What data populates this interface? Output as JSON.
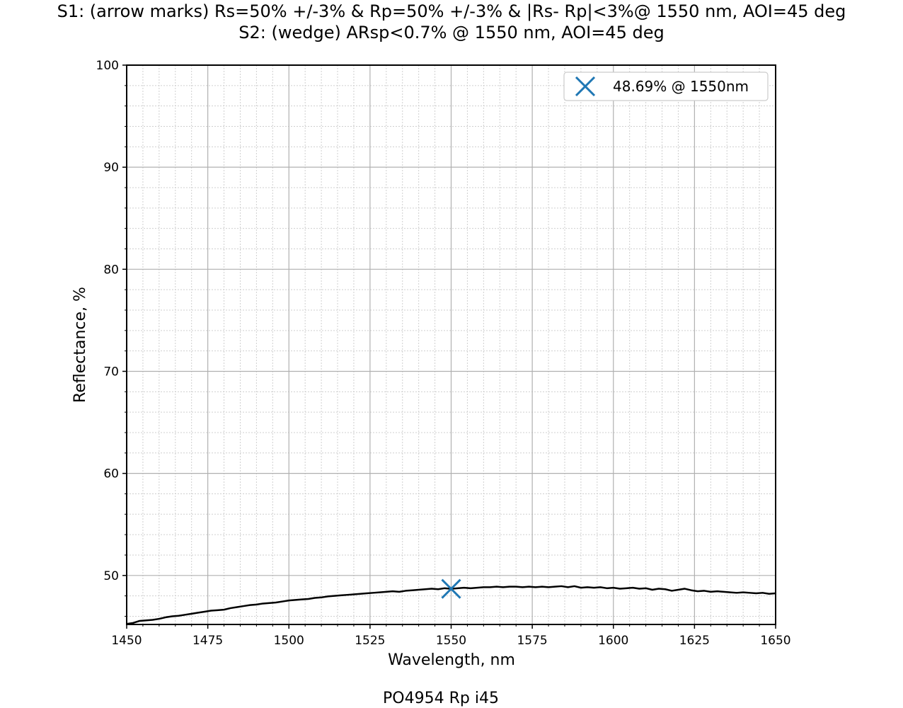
{
  "chart_data": {
    "type": "line",
    "title": "S1: (arrow marks) Rs=50% +/-3% & Rp=50% +/-3% & |Rs- Rp|<3%@ 1550 nm, AOI=45 deg\nS2: (wedge) ARsp<0.7% @ 1550 nm, AOI=45 deg",
    "title_lines": [
      "S1: (arrow marks) Rs=50% +/-3% & Rp=50% +/-3% & |Rs- Rp|<3%@ 1550 nm, AOI=45 deg",
      "S2: (wedge) ARsp<0.7% @ 1550 nm, AOI=45 deg"
    ],
    "xlabel": "Wavelength, nm",
    "ylabel": "Reflectance, %",
    "footer": "PO4954 Rp i45",
    "xlim": [
      1450,
      1650
    ],
    "ylim": [
      45.2,
      100
    ],
    "xticks": [
      1450,
      1475,
      1500,
      1525,
      1550,
      1575,
      1600,
      1625,
      1650
    ],
    "yticks": [
      50,
      60,
      70,
      80,
      90,
      100
    ],
    "grid": true,
    "minor_grid": true,
    "legend_position": "top-right",
    "line_color": "#000000",
    "marker_color": "#1f77b4",
    "series": [
      {
        "x": [
          1450,
          1452,
          1454,
          1456,
          1458,
          1460,
          1462,
          1464,
          1466,
          1468,
          1470,
          1472,
          1474,
          1476,
          1478,
          1480,
          1482,
          1484,
          1486,
          1488,
          1490,
          1492,
          1494,
          1496,
          1498,
          1500,
          1502,
          1504,
          1506,
          1508,
          1510,
          1512,
          1514,
          1516,
          1518,
          1520,
          1522,
          1524,
          1526,
          1528,
          1530,
          1532,
          1534,
          1536,
          1538,
          1540,
          1542,
          1544,
          1546,
          1548,
          1550,
          1552,
          1554,
          1556,
          1558,
          1560,
          1562,
          1564,
          1566,
          1568,
          1570,
          1572,
          1574,
          1576,
          1578,
          1580,
          1582,
          1584,
          1586,
          1588,
          1590,
          1592,
          1594,
          1596,
          1598,
          1600,
          1602,
          1604,
          1606,
          1608,
          1610,
          1612,
          1614,
          1616,
          1618,
          1620,
          1622,
          1624,
          1626,
          1628,
          1630,
          1632,
          1634,
          1636,
          1638,
          1640,
          1642,
          1644,
          1646,
          1648,
          1650
        ],
        "values": [
          45.25,
          45.35,
          45.55,
          45.6,
          45.65,
          45.75,
          45.9,
          46.0,
          46.05,
          46.15,
          46.25,
          46.35,
          46.45,
          46.55,
          46.6,
          46.65,
          46.8,
          46.9,
          47.0,
          47.1,
          47.15,
          47.25,
          47.3,
          47.35,
          47.45,
          47.55,
          47.6,
          47.65,
          47.7,
          47.8,
          47.85,
          47.95,
          48.0,
          48.05,
          48.1,
          48.15,
          48.2,
          48.25,
          48.3,
          48.35,
          48.4,
          48.45,
          48.4,
          48.5,
          48.55,
          48.6,
          48.65,
          48.7,
          48.65,
          48.75,
          48.69,
          48.75,
          48.8,
          48.75,
          48.8,
          48.85,
          48.85,
          48.9,
          48.85,
          48.9,
          48.9,
          48.85,
          48.9,
          48.85,
          48.9,
          48.85,
          48.9,
          48.95,
          48.85,
          48.95,
          48.8,
          48.85,
          48.8,
          48.85,
          48.75,
          48.8,
          48.7,
          48.75,
          48.8,
          48.7,
          48.75,
          48.6,
          48.7,
          48.65,
          48.5,
          48.6,
          48.7,
          48.55,
          48.45,
          48.5,
          48.4,
          48.45,
          48.4,
          48.35,
          48.3,
          48.35,
          48.3,
          48.25,
          48.3,
          48.2,
          48.25
        ]
      }
    ],
    "marker": {
      "x": 1550,
      "y": 48.69,
      "label": "48.69% @ 1550nm"
    }
  }
}
